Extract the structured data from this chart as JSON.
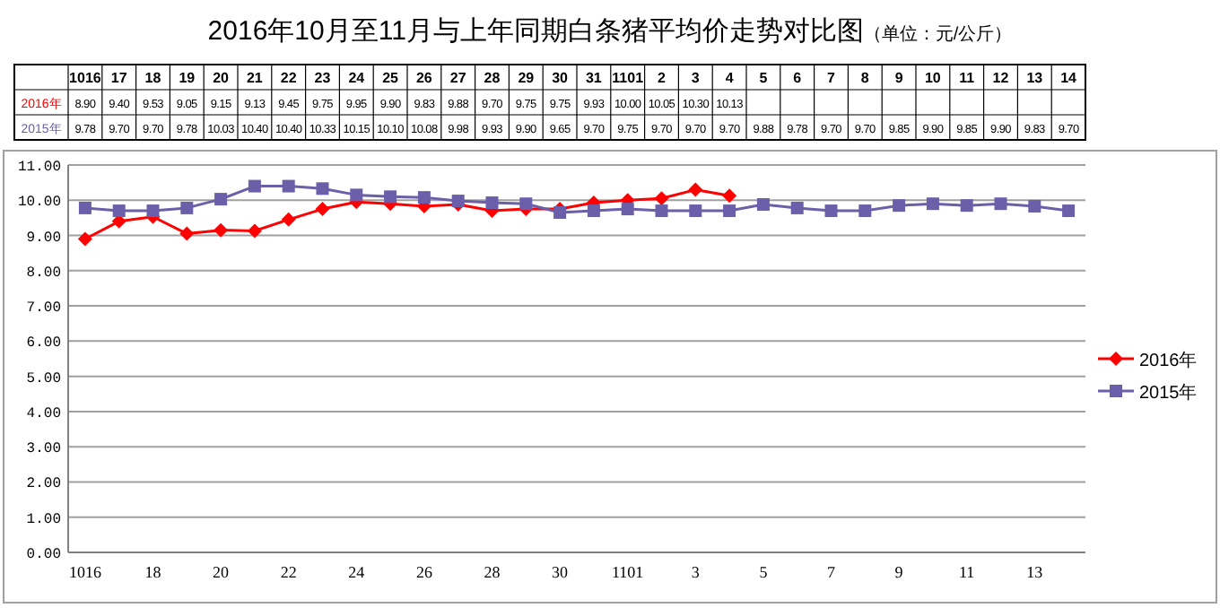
{
  "chart_data": {
    "type": "line",
    "title": "2016年10月至11月与上年同期白条猪平均价走势对比图",
    "subtitle": "（单位：元/公斤）",
    "categories": [
      "1016",
      "17",
      "18",
      "19",
      "20",
      "21",
      "22",
      "23",
      "24",
      "25",
      "26",
      "27",
      "28",
      "29",
      "30",
      "31",
      "1101",
      "2",
      "3",
      "4",
      "5",
      "6",
      "7",
      "8",
      "9",
      "10",
      "11",
      "12",
      "13",
      "14"
    ],
    "series": [
      {
        "name": "2016年",
        "color": "#ff0000",
        "marker": "diamond",
        "values": [
          8.9,
          9.4,
          9.53,
          9.05,
          9.15,
          9.13,
          9.45,
          9.75,
          9.95,
          9.9,
          9.83,
          9.88,
          9.7,
          9.75,
          9.75,
          9.93,
          10.0,
          10.05,
          10.3,
          10.13,
          null,
          null,
          null,
          null,
          null,
          null,
          null,
          null,
          null,
          null
        ],
        "value_labels": [
          "8.90",
          "9.40",
          "9.53",
          "9.05",
          "9.15",
          "9.13",
          "9.45",
          "9.75",
          "9.95",
          "9.90",
          "9.83",
          "9.88",
          "9.70",
          "9.75",
          "9.75",
          "9.93",
          "10.00",
          "10.05",
          "10.30",
          "10.13",
          null,
          null,
          null,
          null,
          null,
          null,
          null,
          null,
          null,
          null
        ]
      },
      {
        "name": "2015年",
        "color": "#6a5fa8",
        "marker": "square",
        "values": [
          9.78,
          9.7,
          9.7,
          9.78,
          10.03,
          10.4,
          10.4,
          10.33,
          10.15,
          10.1,
          10.08,
          9.98,
          9.93,
          9.9,
          9.65,
          9.7,
          9.75,
          9.7,
          9.7,
          9.7,
          9.88,
          9.78,
          9.7,
          9.7,
          9.85,
          9.9,
          9.85,
          9.9,
          9.83,
          9.7
        ],
        "value_labels": [
          "9.78",
          "9.70",
          "9.70",
          "9.78",
          "10.03",
          "10.40",
          "10.40",
          "10.33",
          "10.15",
          "10.10",
          "10.08",
          "9.98",
          "9.93",
          "9.90",
          "9.65",
          "9.70",
          "9.75",
          "9.70",
          "9.70",
          "9.70",
          "9.88",
          "9.78",
          "9.70",
          "9.70",
          "9.85",
          "9.90",
          "9.85",
          "9.90",
          "9.83",
          "9.70"
        ]
      }
    ],
    "ylim": [
      0,
      11
    ],
    "yticks": [
      {
        "value": 0,
        "label": "0.00"
      },
      {
        "value": 1,
        "label": "1.00"
      },
      {
        "value": 2,
        "label": "2.00"
      },
      {
        "value": 3,
        "label": "3.00"
      },
      {
        "value": 4,
        "label": "4.00"
      },
      {
        "value": 5,
        "label": "5.00"
      },
      {
        "value": 6,
        "label": "6.00"
      },
      {
        "value": 7,
        "label": "7.00"
      },
      {
        "value": 8,
        "label": "8.00"
      },
      {
        "value": 9,
        "label": "9.00"
      },
      {
        "value": 10,
        "label": "10.00"
      },
      {
        "value": 11,
        "label": "11.00"
      }
    ],
    "grid": "y",
    "legend": "right",
    "line_style": "solid"
  }
}
